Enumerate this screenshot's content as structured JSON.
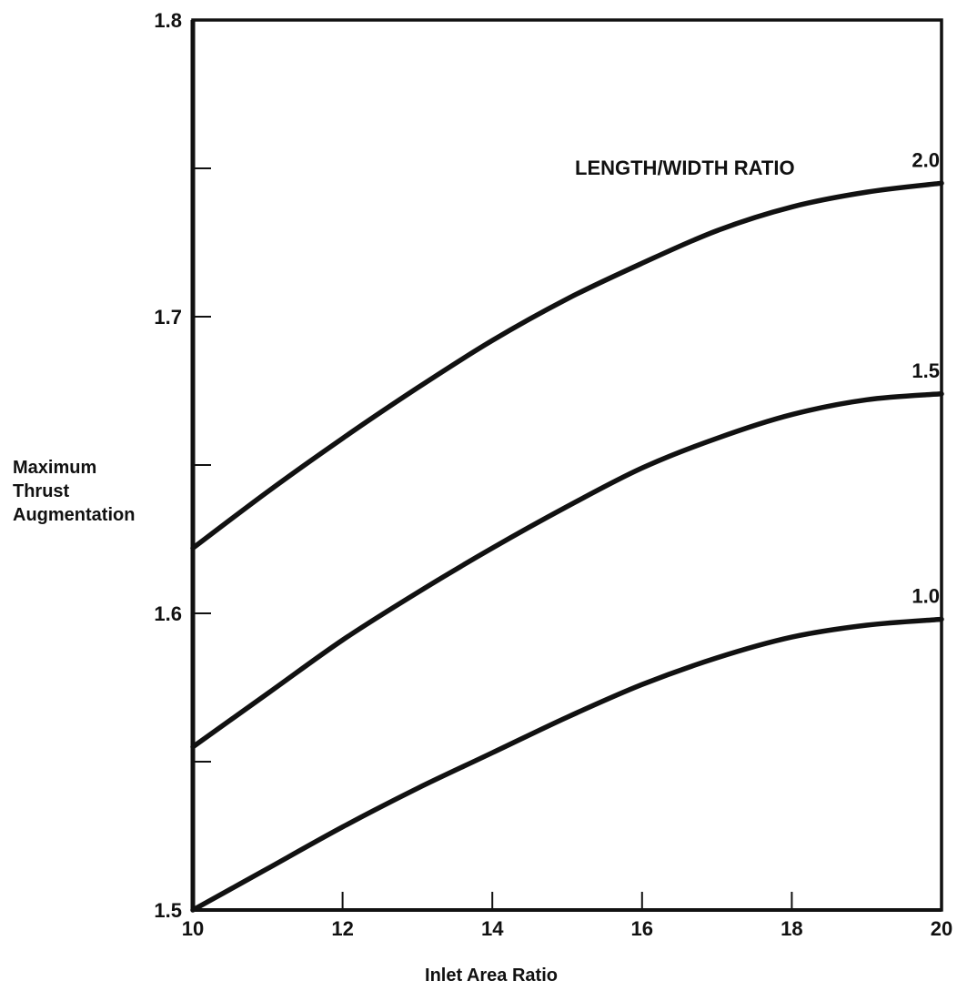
{
  "chart_data": {
    "type": "line",
    "title": "",
    "xlabel": "Inlet Area Ratio",
    "ylabel": [
      "Maximum",
      "Thrust",
      "Augmentation"
    ],
    "legend_title": "LENGTH/WIDTH RATIO",
    "xlim": [
      10,
      20
    ],
    "ylim": [
      1.5,
      1.8
    ],
    "x_ticks": [
      10,
      12,
      14,
      16,
      18,
      20
    ],
    "x_tick_labels": [
      "10",
      "12",
      "14",
      "16",
      "18",
      "20"
    ],
    "y_major_ticks": [
      1.5,
      1.6,
      1.7,
      1.8
    ],
    "y_tick_labels": [
      "1.5",
      "1.6",
      "1.7",
      "1.8"
    ],
    "y_minor_ticks": [
      1.55,
      1.65,
      1.75
    ],
    "grid": false,
    "series": [
      {
        "name": "2.0",
        "x": [
          10,
          11,
          12,
          13,
          14,
          15,
          16,
          17,
          18,
          19,
          20
        ],
        "y": [
          1.622,
          1.641,
          1.659,
          1.676,
          1.692,
          1.706,
          1.718,
          1.729,
          1.737,
          1.742,
          1.745
        ]
      },
      {
        "name": "1.5",
        "x": [
          10,
          11,
          12,
          13,
          14,
          15,
          16,
          17,
          18,
          19,
          20
        ],
        "y": [
          1.555,
          1.573,
          1.591,
          1.607,
          1.622,
          1.636,
          1.649,
          1.659,
          1.667,
          1.672,
          1.674
        ]
      },
      {
        "name": "1.0",
        "x": [
          10,
          11,
          12,
          13,
          14,
          15,
          16,
          17,
          18,
          19,
          20
        ],
        "y": [
          1.5,
          1.514,
          1.528,
          1.541,
          1.553,
          1.565,
          1.576,
          1.585,
          1.592,
          1.596,
          1.598
        ]
      }
    ],
    "colors": {
      "line": "#111111",
      "background": "#ffffff"
    }
  }
}
